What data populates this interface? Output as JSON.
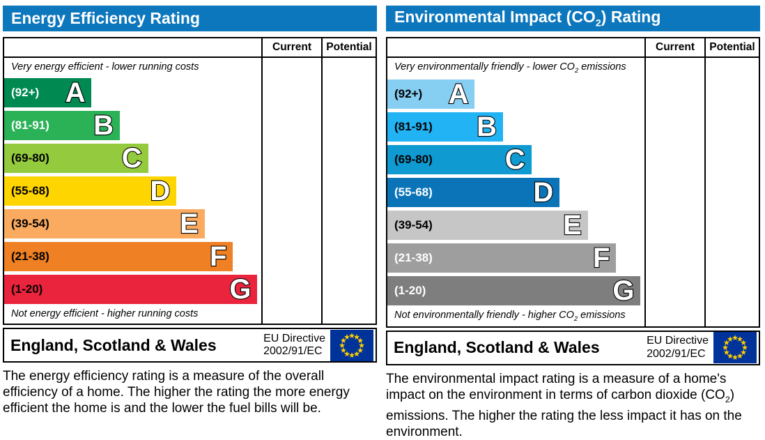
{
  "accent_blue": "#0d77bd",
  "eu_flag": {
    "background": "#003399",
    "star_color": "#ffcc00"
  },
  "chart_data": [
    {
      "type": "bar",
      "orientation": "horizontal",
      "title": "Energy Efficiency Rating",
      "categories": [
        "A",
        "B",
        "C",
        "D",
        "E",
        "F",
        "G"
      ],
      "ranges": [
        "92+",
        "81-91",
        "69-80",
        "55-68",
        "39-54",
        "21-38",
        "1-20"
      ],
      "values": [
        34,
        45,
        56,
        67,
        78,
        89,
        98.5
      ],
      "value_unit": "relative bar length, % of rating column",
      "colors": [
        "#008a52",
        "#2bb257",
        "#94ca3d",
        "#ffd500",
        "#fbab60",
        "#ef8023",
        "#e9243c"
      ],
      "columns": [
        "Current",
        "Potential"
      ],
      "current": null,
      "potential": null,
      "top_label": "Very energy efficient - lower running costs",
      "bottom_label": "Not energy efficient - higher running costs",
      "footer": "England, Scotland & Wales — EU Directive 2002/91/EC"
    },
    {
      "type": "bar",
      "orientation": "horizontal",
      "title": "Environmental Impact (CO2) Rating",
      "categories": [
        "A",
        "B",
        "C",
        "D",
        "E",
        "F",
        "G"
      ],
      "ranges": [
        "92+",
        "81-91",
        "69-80",
        "55-68",
        "39-54",
        "21-38",
        "1-20"
      ],
      "values": [
        34,
        45,
        56,
        67,
        78,
        89,
        98.5
      ],
      "value_unit": "relative bar length, % of rating column",
      "colors": [
        "#86cef2",
        "#22b3f4",
        "#0f9ad2",
        "#0b74b8",
        "#c6c6c6",
        "#9e9e9e",
        "#7e7e7e"
      ],
      "columns": [
        "Current",
        "Potential"
      ],
      "current": null,
      "potential": null,
      "top_label": "Very environmentally friendly - lower CO2 emissions",
      "bottom_label": "Not environmentally friendly - higher CO2 emissions",
      "footer": "England, Scotland & Wales — EU Directive 2002/91/EC"
    }
  ],
  "left_panel": {
    "title": "Energy Efficiency Rating",
    "columns": {
      "current": "Current",
      "potential": "Potential"
    },
    "top_note": "Very energy efficient - lower running costs",
    "bottom_note": "Not energy efficient - higher running costs",
    "bands": [
      {
        "range": "(92+)",
        "letter": "A",
        "color": "#008a52",
        "text_color": "#ffffff",
        "width_pct": 34
      },
      {
        "range": "(81-91)",
        "letter": "B",
        "color": "#2bb257",
        "text_color": "#ffffff",
        "width_pct": 45
      },
      {
        "range": "(69-80)",
        "letter": "C",
        "color": "#94ca3d",
        "text_color": "#000000",
        "width_pct": 56
      },
      {
        "range": "(55-68)",
        "letter": "D",
        "color": "#ffd500",
        "text_color": "#000000",
        "width_pct": 67
      },
      {
        "range": "(39-54)",
        "letter": "E",
        "color": "#fbab60",
        "text_color": "#000000",
        "width_pct": 78
      },
      {
        "range": "(21-38)",
        "letter": "F",
        "color": "#ef8023",
        "text_color": "#000000",
        "width_pct": 89
      },
      {
        "range": "(1-20)",
        "letter": "G",
        "color": "#e9243c",
        "text_color": "#000000",
        "width_pct": 98.5
      }
    ],
    "footer": {
      "region": "England, Scotland & Wales",
      "directive_line1": "EU Directive",
      "directive_line2": "2002/91/EC"
    },
    "description": "The energy efficiency rating is a measure of the overall efficiency of a home. The higher the rating the more energy efficient the home is and the lower the fuel bills will be."
  },
  "right_panel": {
    "title": {
      "pre": "Environmental Impact (CO",
      "sub": "2",
      "post": ") Rating"
    },
    "columns": {
      "current": "Current",
      "potential": "Potential"
    },
    "top_note": {
      "pre": "Very environmentally friendly - lower CO",
      "sub": "2",
      "post": " emissions"
    },
    "bottom_note": {
      "pre": "Not environmentally friendly - higher CO",
      "sub": "2",
      "post": " emissions"
    },
    "bands": [
      {
        "range": "(92+)",
        "letter": "A",
        "color": "#86cef2",
        "text_color": "#000000",
        "width_pct": 34
      },
      {
        "range": "(81-91)",
        "letter": "B",
        "color": "#22b3f4",
        "text_color": "#000000",
        "width_pct": 45
      },
      {
        "range": "(69-80)",
        "letter": "C",
        "color": "#0f9ad2",
        "text_color": "#000000",
        "width_pct": 56
      },
      {
        "range": "(55-68)",
        "letter": "D",
        "color": "#0b74b8",
        "text_color": "#ffffff",
        "width_pct": 67
      },
      {
        "range": "(39-54)",
        "letter": "E",
        "color": "#c6c6c6",
        "text_color": "#000000",
        "width_pct": 78
      },
      {
        "range": "(21-38)",
        "letter": "F",
        "color": "#9e9e9e",
        "text_color": "#ffffff",
        "width_pct": 89
      },
      {
        "range": "(1-20)",
        "letter": "G",
        "color": "#7e7e7e",
        "text_color": "#ffffff",
        "width_pct": 98.5
      }
    ],
    "footer": {
      "region": "England, Scotland & Wales",
      "directive_line1": "EU Directive",
      "directive_line2": "2002/91/EC"
    },
    "description": {
      "pre": "The environmental impact rating is a measure of a home's impact on the environment in terms of carbon dioxide (CO",
      "sub": "2",
      "post": ") emissions. The higher the rating the less impact it has on the environment."
    }
  }
}
